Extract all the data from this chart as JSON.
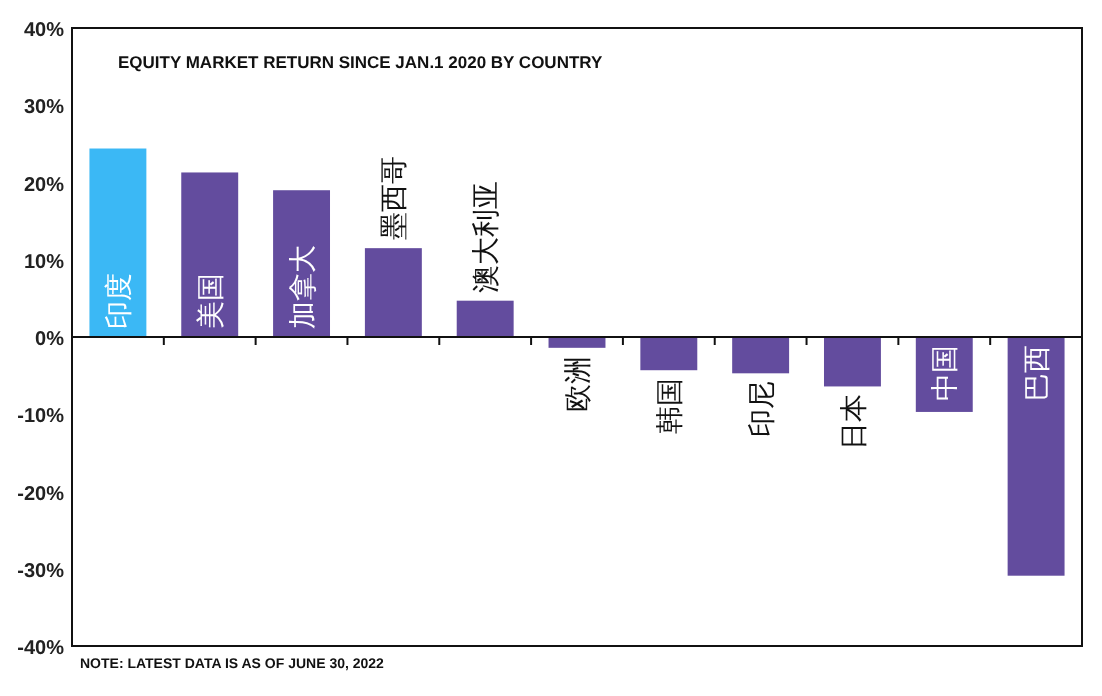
{
  "chart_data": {
    "type": "bar",
    "title": "EQUITY MARKET RETURN SINCE JAN.1 2020 BY COUNTRY",
    "categories": [
      "印度",
      "美国",
      "加拿大",
      "墨西哥",
      "澳大利亚",
      "欧洲",
      "韩国",
      "印尼",
      "日本",
      "中国",
      "巴西"
    ],
    "values": [
      24.4,
      21.3,
      19.0,
      11.5,
      4.7,
      -1.4,
      -4.3,
      -4.7,
      -6.4,
      -9.7,
      -30.9
    ],
    "colors": [
      "#3bb8f5",
      "#634c9e",
      "#634c9e",
      "#634c9e",
      "#634c9e",
      "#634c9e",
      "#634c9e",
      "#634c9e",
      "#634c9e",
      "#634c9e",
      "#634c9e"
    ],
    "ylim": [
      -40,
      40
    ],
    "yticks": [
      {
        "value": 40,
        "label": "40%"
      },
      {
        "value": 30,
        "label": "30%"
      },
      {
        "value": 20,
        "label": "20%"
      },
      {
        "value": 10,
        "label": "10%"
      },
      {
        "value": 0,
        "label": "0%"
      },
      {
        "value": -10,
        "label": "-10%"
      },
      {
        "value": -20,
        "label": "-20%"
      },
      {
        "value": -30,
        "label": "-30%"
      },
      {
        "value": -40,
        "label": "-40%"
      }
    ],
    "annotations": [
      "NOTE: LATEST DATA IS AS OF JUNE 30, 2022"
    ]
  }
}
